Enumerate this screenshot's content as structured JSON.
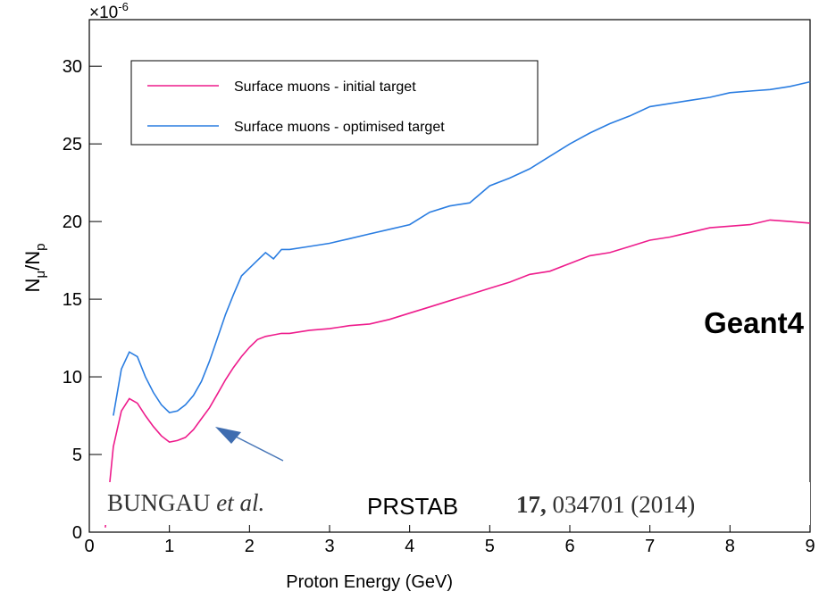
{
  "chart_data": {
    "type": "line",
    "y_scale": "×10",
    "y_scale_exp": "-6",
    "y_label": [
      "N",
      "μ",
      "/N",
      "p"
    ],
    "x_label": "Proton Energy (GeV)",
    "annotation": "Geant4",
    "citation": [
      "BUNGAU",
      "et al.",
      "PRSTAB",
      "17,",
      "034701 (2014)"
    ],
    "x": [
      0.2,
      0.3,
      0.4,
      0.5,
      0.6,
      0.7,
      0.8,
      0.9,
      1.0,
      1.1,
      1.2,
      1.3,
      1.4,
      1.5,
      1.6,
      1.7,
      1.8,
      1.9,
      2.0,
      2.1,
      2.2,
      2.3,
      2.4,
      2.5,
      2.75,
      3.0,
      3.25,
      3.5,
      3.75,
      4.0,
      4.25,
      4.5,
      4.75,
      5.0,
      5.25,
      5.5,
      5.75,
      6.0,
      6.25,
      6.5,
      6.75,
      7.0,
      7.25,
      7.5,
      7.75,
      8.0,
      8.25,
      8.5,
      8.75,
      9.0
    ],
    "series": [
      {
        "name": "Surface muons - initial target",
        "color": "#ee1c8c",
        "values": [
          0.3,
          5.5,
          7.8,
          8.6,
          8.3,
          7.5,
          6.8,
          6.2,
          5.8,
          5.9,
          6.1,
          6.6,
          7.3,
          8.0,
          8.9,
          9.8,
          10.6,
          11.3,
          11.9,
          12.4,
          12.6,
          12.7,
          12.8,
          12.8,
          13.0,
          13.1,
          13.3,
          13.4,
          13.7,
          14.1,
          14.5,
          14.9,
          15.3,
          15.7,
          16.1,
          16.6,
          16.8,
          17.3,
          17.8,
          18.0,
          18.4,
          18.8,
          19.0,
          19.3,
          19.6,
          19.7,
          19.8,
          20.1,
          20.0,
          19.9
        ]
      },
      {
        "name": "Surface muons - optimised target",
        "color": "#2a7de1",
        "values": [
          null,
          7.5,
          10.5,
          11.6,
          11.3,
          10.0,
          9.0,
          8.2,
          7.7,
          7.8,
          8.2,
          8.8,
          9.7,
          11.0,
          12.5,
          14.0,
          15.3,
          16.5,
          17.0,
          17.5,
          18.0,
          17.6,
          18.2,
          18.2,
          18.4,
          18.6,
          18.9,
          19.2,
          19.5,
          19.8,
          20.6,
          21.0,
          21.2,
          22.3,
          22.8,
          23.4,
          24.2,
          25.0,
          25.7,
          26.3,
          26.8,
          27.4,
          27.6,
          27.8,
          28.0,
          28.3,
          28.4,
          28.5,
          28.7,
          29.0
        ]
      }
    ],
    "xlim": [
      0,
      9
    ],
    "xticks": [
      0,
      1,
      2,
      3,
      4,
      5,
      6,
      7,
      8,
      9
    ],
    "ylim": [
      0,
      33
    ],
    "yticks": [
      0,
      5,
      10,
      15,
      20,
      25,
      30
    ]
  }
}
